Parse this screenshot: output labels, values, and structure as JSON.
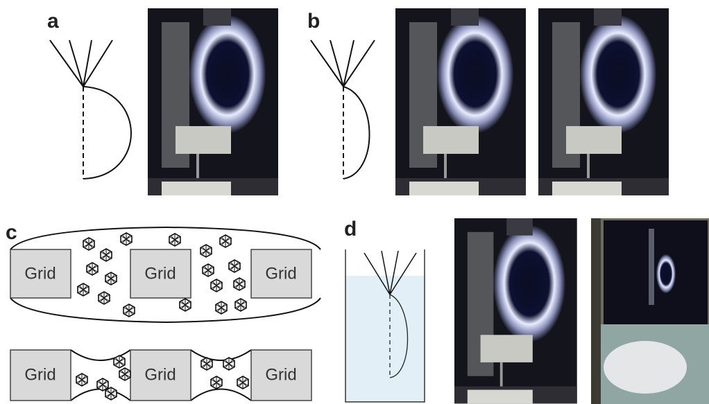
{
  "panels": [
    {
      "label": "a"
    },
    {
      "label": "b"
    },
    {
      "label": "c",
      "top_grids": [
        "Grid",
        "Grid",
        "Grid"
      ],
      "bottom_grids": [
        "Grid",
        "Grid",
        "Grid"
      ]
    },
    {
      "label": "d"
    }
  ]
}
